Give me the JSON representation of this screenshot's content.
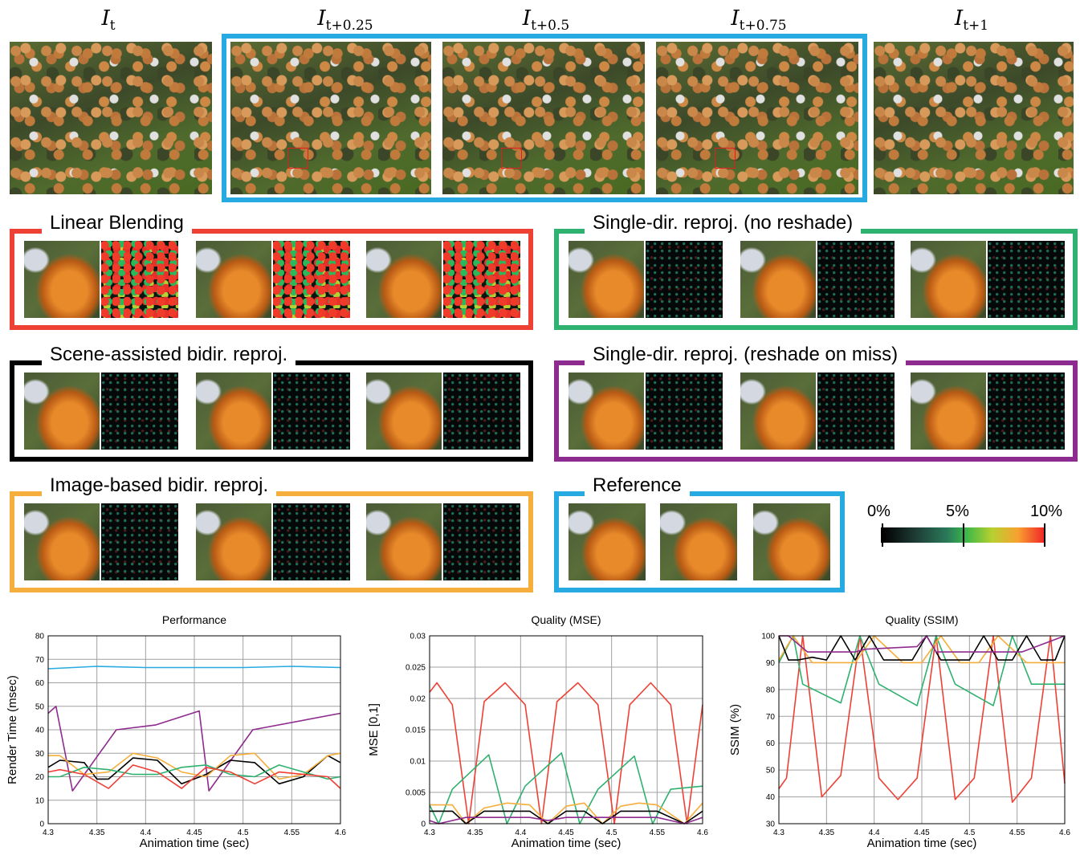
{
  "frame_labels": [
    {
      "base": "I",
      "sub": "t"
    },
    {
      "base": "I",
      "sub": "t+0.25"
    },
    {
      "base": "I",
      "sub": "t+0.5"
    },
    {
      "base": "I",
      "sub": "t+0.75"
    },
    {
      "base": "I",
      "sub": "t+1"
    }
  ],
  "panels": {
    "linear_blending": "Linear Blending",
    "single_dir_no_reshade": "Single-dir. reproj. (no reshade)",
    "scene_assisted": "Scene-assisted bidir. reproj.",
    "single_dir_reshade_miss": "Single-dir. reproj. (reshade on miss)",
    "image_based": "Image-based bidir. reproj.",
    "reference": "Reference"
  },
  "colors": {
    "blue": "#27aae1",
    "red": "#ee4035",
    "green": "#2fb16f",
    "black": "#000000",
    "purple": "#8e2b8e",
    "orange": "#f6ae3c"
  },
  "colorbar": {
    "labels": [
      "0%",
      "5%",
      "10%"
    ]
  },
  "chart_data": [
    {
      "type": "line",
      "title": "Performance",
      "xlabel": "Animation time (sec)",
      "ylabel": "Render Time (msec)",
      "xlim": [
        4.3,
        4.6
      ],
      "ylim": [
        0,
        80
      ],
      "xticks": [
        "4.3",
        "4.35",
        "4.4",
        "4.45",
        "4.5",
        "4.55",
        "4.6"
      ],
      "yticks": [
        "0",
        "10",
        "20",
        "30",
        "40",
        "50",
        "60",
        "70",
        "80"
      ],
      "grid": true,
      "series": [
        {
          "color": "blue",
          "x": [
            4.3,
            4.35,
            4.4,
            4.45,
            4.5,
            4.55,
            4.6
          ],
          "y": [
            66,
            67,
            66.5,
            66.5,
            66.5,
            67,
            66.5
          ]
        },
        {
          "color": "purple",
          "x": [
            4.3,
            4.308,
            4.325,
            4.37,
            4.41,
            4.455,
            4.465,
            4.51,
            4.6
          ],
          "y": [
            47,
            50,
            14,
            40,
            42,
            48,
            14,
            40,
            47
          ]
        },
        {
          "color": "black",
          "x": [
            4.3,
            4.312,
            4.337,
            4.35,
            4.362,
            4.387,
            4.412,
            4.437,
            4.462,
            4.487,
            4.512,
            4.537,
            4.562,
            4.587,
            4.6
          ],
          "y": [
            24,
            27,
            26,
            19,
            19,
            28,
            27,
            17,
            21,
            27,
            26,
            17,
            20,
            29,
            26
          ]
        },
        {
          "color": "orange",
          "x": [
            4.3,
            4.312,
            4.337,
            4.362,
            4.387,
            4.412,
            4.437,
            4.462,
            4.487,
            4.512,
            4.537,
            4.562,
            4.587,
            4.6
          ],
          "y": [
            29,
            29,
            21,
            22,
            30,
            28,
            22,
            20,
            29,
            30,
            19,
            21,
            29,
            30
          ]
        },
        {
          "color": "green",
          "x": [
            4.3,
            4.312,
            4.337,
            4.362,
            4.387,
            4.412,
            4.437,
            4.462,
            4.487,
            4.512,
            4.537,
            4.562,
            4.587,
            4.6
          ],
          "y": [
            20,
            20,
            24,
            23,
            21,
            21,
            24,
            25,
            21,
            20,
            25,
            22,
            19,
            20
          ]
        },
        {
          "color": "red",
          "x": [
            4.3,
            4.312,
            4.337,
            4.362,
            4.387,
            4.412,
            4.437,
            4.462,
            4.487,
            4.512,
            4.537,
            4.562,
            4.587,
            4.6
          ],
          "y": [
            22,
            23,
            21,
            15,
            25,
            22,
            15,
            24,
            22,
            17,
            22,
            21,
            20,
            15
          ]
        }
      ]
    },
    {
      "type": "line",
      "title": "Quality (MSE)",
      "xlabel": "Animation time (sec)",
      "ylabel": "MSE [0,1]",
      "xlim": [
        4.3,
        4.6
      ],
      "ylim": [
        0,
        0.03
      ],
      "xticks": [
        "4.3",
        "4.35",
        "4.4",
        "4.45",
        "4.5",
        "4.55",
        "4.6"
      ],
      "yticks": [
        "0",
        "0.005",
        "0.01",
        "0.015",
        "0.02",
        "0.025",
        "0.03"
      ],
      "grid": true,
      "series": [
        {
          "color": "red",
          "x": [
            4.3,
            4.308,
            4.325,
            4.343,
            4.36,
            4.383,
            4.405,
            4.423,
            4.44,
            4.463,
            4.485,
            4.503,
            4.52,
            4.543,
            4.565,
            4.583,
            4.6
          ],
          "y": [
            0.021,
            0.0225,
            0.019,
            0,
            0.0195,
            0.0225,
            0.019,
            0,
            0.0195,
            0.0225,
            0.019,
            0,
            0.019,
            0.0225,
            0.019,
            0,
            0.019
          ]
        },
        {
          "color": "green",
          "x": [
            4.3,
            4.31,
            4.325,
            4.365,
            4.385,
            4.405,
            4.445,
            4.465,
            4.485,
            4.525,
            4.545,
            4.565,
            4.6
          ],
          "y": [
            0.003,
            0,
            0.0055,
            0.011,
            0,
            0.006,
            0.0113,
            0,
            0.0055,
            0.0108,
            0,
            0.0055,
            0.006
          ]
        },
        {
          "color": "orange",
          "x": [
            4.3,
            4.325,
            4.34,
            4.36,
            4.385,
            4.41,
            4.43,
            4.45,
            4.47,
            4.49,
            4.51,
            4.53,
            4.55,
            4.58,
            4.6
          ],
          "y": [
            0.003,
            0.003,
            0,
            0.0025,
            0.0033,
            0.003,
            0,
            0.0028,
            0.0033,
            0,
            0.0028,
            0.0033,
            0.003,
            0,
            0.0033
          ]
        },
        {
          "color": "black",
          "x": [
            4.3,
            4.325,
            4.34,
            4.36,
            4.385,
            4.41,
            4.43,
            4.45,
            4.47,
            4.49,
            4.51,
            4.53,
            4.55,
            4.58,
            4.6
          ],
          "y": [
            0.002,
            0.002,
            0,
            0.002,
            0.002,
            0.002,
            0,
            0.002,
            0.002,
            0,
            0.002,
            0.002,
            0.002,
            0,
            0.002
          ]
        },
        {
          "color": "purple",
          "x": [
            4.3,
            4.31,
            4.34,
            4.36,
            4.385,
            4.41,
            4.43,
            4.45,
            4.47,
            4.49,
            4.51,
            4.53,
            4.55,
            4.58,
            4.6
          ],
          "y": [
            0.0005,
            0,
            0.001,
            0.001,
            0.001,
            0.001,
            0.0005,
            0.001,
            0.001,
            0.001,
            0.001,
            0.001,
            0.001,
            0,
            0.001
          ]
        }
      ]
    },
    {
      "type": "line",
      "title": "Quality (SSIM)",
      "xlabel": "Animation time (sec)",
      "ylabel": "SSIM (%)",
      "xlim": [
        4.3,
        4.6
      ],
      "ylim": [
        30,
        100
      ],
      "xticks": [
        "4.3",
        "4.35",
        "4.4",
        "4.45",
        "4.5",
        "4.55",
        "4.6"
      ],
      "yticks": [
        "30",
        "40",
        "50",
        "60",
        "70",
        "80",
        "90",
        "100"
      ],
      "grid": true,
      "series": [
        {
          "color": "red",
          "x": [
            4.3,
            4.308,
            4.325,
            4.345,
            4.365,
            4.385,
            4.405,
            4.425,
            4.445,
            4.465,
            4.485,
            4.505,
            4.525,
            4.545,
            4.565,
            4.585,
            4.6
          ],
          "y": [
            43,
            47,
            100,
            40,
            48,
            100,
            47,
            39,
            47,
            100,
            39,
            47,
            100,
            38,
            47,
            100,
            45
          ]
        },
        {
          "color": "green",
          "x": [
            4.3,
            4.315,
            4.325,
            4.365,
            4.385,
            4.405,
            4.445,
            4.465,
            4.485,
            4.525,
            4.545,
            4.565,
            4.6
          ],
          "y": [
            90,
            100,
            82,
            75,
            100,
            82,
            74,
            100,
            82,
            74,
            100,
            82,
            82
          ]
        },
        {
          "color": "orange",
          "x": [
            4.3,
            4.315,
            4.335,
            4.36,
            4.38,
            4.4,
            4.43,
            4.45,
            4.47,
            4.49,
            4.51,
            4.53,
            4.56,
            4.58,
            4.6
          ],
          "y": [
            91,
            100,
            90,
            90,
            90,
            100,
            90,
            90,
            100,
            90,
            90,
            100,
            90,
            90,
            90
          ]
        },
        {
          "color": "black",
          "x": [
            4.3,
            4.31,
            4.32,
            4.335,
            4.35,
            4.365,
            4.38,
            4.395,
            4.41,
            4.425,
            4.44,
            4.455,
            4.47,
            4.485,
            4.5,
            4.515,
            4.53,
            4.545,
            4.56,
            4.575,
            4.59,
            4.6
          ],
          "y": [
            100,
            91,
            91,
            92,
            91,
            100,
            91,
            100,
            91,
            91,
            91,
            100,
            91,
            91,
            91,
            100,
            91,
            91,
            100,
            91,
            91,
            100
          ]
        },
        {
          "color": "purple",
          "x": [
            4.3,
            4.31,
            4.33,
            4.38,
            4.39,
            4.445,
            4.455,
            4.465,
            4.51,
            4.52,
            4.555,
            4.6
          ],
          "y": [
            100,
            100,
            94,
            94,
            95,
            96,
            100,
            94,
            94,
            94,
            94,
            100
          ]
        }
      ]
    }
  ]
}
